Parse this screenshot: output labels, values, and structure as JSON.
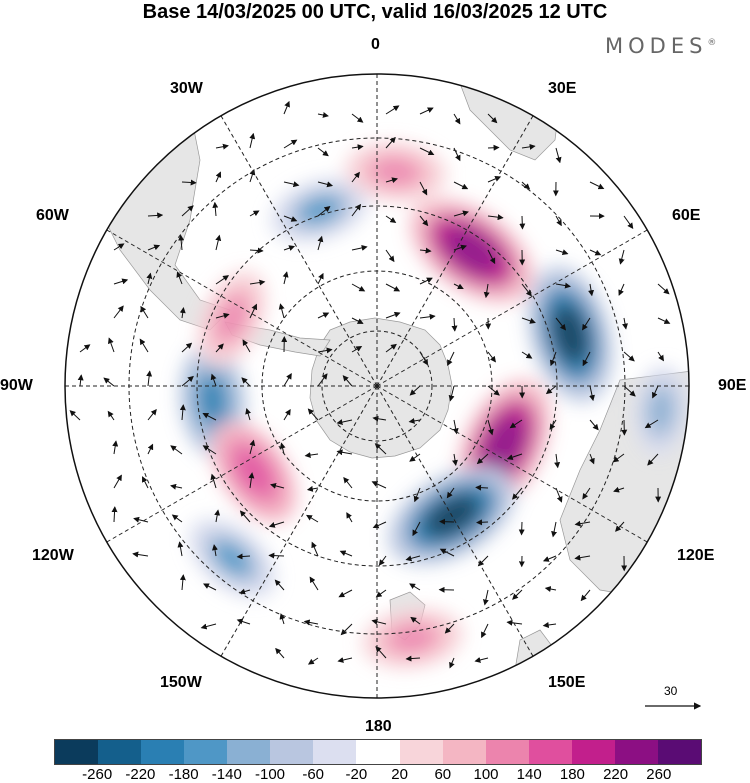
{
  "title": "Base 14/03/2025 00 UTC, valid 16/03/2025 12 UTC",
  "brand": {
    "name": "MODES",
    "mark": "®"
  },
  "longitude_labels": [
    "0",
    "30E",
    "60E",
    "90E",
    "120E",
    "150E",
    "180",
    "150W",
    "120W",
    "90W",
    "60W",
    "30W"
  ],
  "reference_vector": {
    "label": "30",
    "icon": "arrow-right-icon"
  },
  "colorbar": {
    "ticks": [
      "-260",
      "-220",
      "-180",
      "-140",
      "-100",
      "-60",
      "-20",
      "20",
      "60",
      "100",
      "140",
      "180",
      "220",
      "260"
    ],
    "colors": [
      "#0b3b5c",
      "#145f8c",
      "#2a7fb3",
      "#4f97c6",
      "#8ab0d3",
      "#b9c6e0",
      "#dcdff0",
      "#ffffff",
      "#f8d5da",
      "#f4b6c3",
      "#ec84ad",
      "#e04f9e",
      "#c21f8c",
      "#8c0f83",
      "#5a0c74"
    ]
  },
  "map": {
    "projection": "south-polar-stereographic",
    "land_color": "#e6e6e6",
    "grid": "dashed",
    "anomaly_centres": [
      {
        "lon": 35,
        "value": 260
      },
      {
        "lon": 75,
        "value": -260
      },
      {
        "lon": 115,
        "value": 260
      },
      {
        "lon": 150,
        "value": -260
      },
      {
        "lon": 172,
        "value": 140
      },
      {
        "lon": -18,
        "value": -140
      },
      {
        "lon": 5,
        "value": 140
      },
      {
        "lon": -95,
        "value": -180
      },
      {
        "lon": -125,
        "value": 180
      },
      {
        "lon": -65,
        "value": 140
      },
      {
        "lon": -140,
        "value": -140
      },
      {
        "lon": 95,
        "value": -100
      }
    ]
  }
}
